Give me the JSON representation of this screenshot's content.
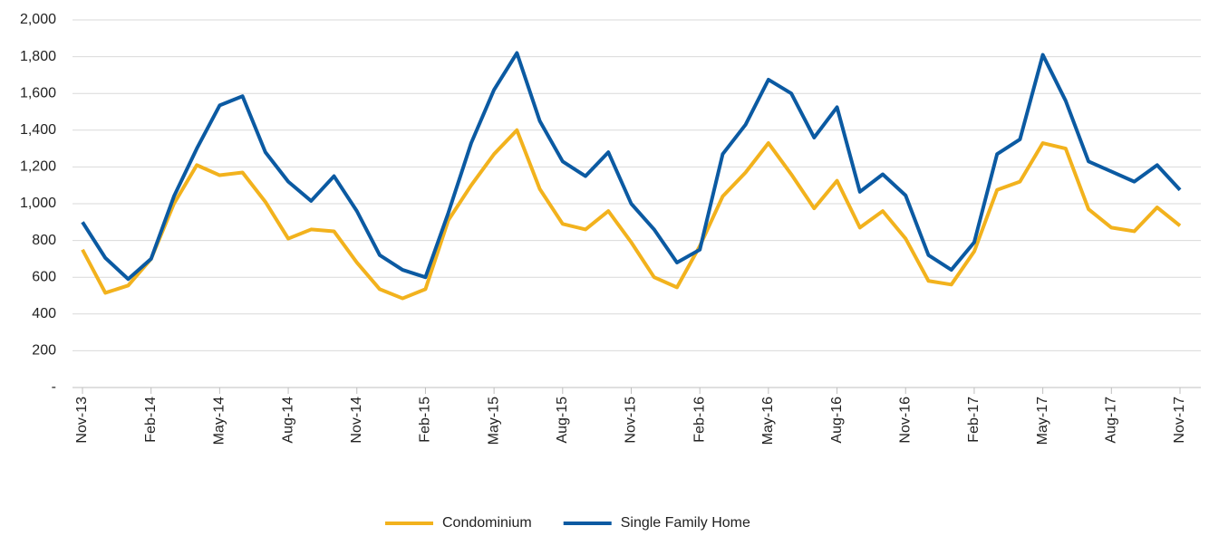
{
  "chart_data": {
    "type": "line",
    "categories": [
      "Nov-13",
      null,
      null,
      "Feb-14",
      null,
      null,
      "May-14",
      null,
      null,
      "Aug-14",
      null,
      null,
      "Nov-14",
      null,
      null,
      "Feb-15",
      null,
      null,
      "May-15",
      null,
      null,
      "Aug-15",
      null,
      null,
      "Nov-15",
      null,
      null,
      "Feb-16",
      null,
      null,
      "May-16",
      null,
      null,
      "Aug-16",
      null,
      null,
      "Nov-16",
      null,
      null,
      "Feb-17",
      null,
      null,
      "May-17",
      null,
      null,
      "Aug-17",
      null,
      null,
      "Nov-17"
    ],
    "series": [
      {
        "name": "Condominium",
        "color": "#f2b21d",
        "values": [
          750,
          515,
          555,
          700,
          1000,
          1210,
          1155,
          1170,
          1010,
          810,
          860,
          850,
          680,
          535,
          485,
          535,
          910,
          1100,
          1270,
          1400,
          1080,
          890,
          860,
          960,
          790,
          600,
          545,
          770,
          1040,
          1170,
          1330,
          1160,
          975,
          1125,
          870,
          960,
          810,
          580,
          560,
          740,
          1075,
          1120,
          1330,
          1300,
          970,
          870,
          850,
          980,
          880
        ]
      },
      {
        "name": "Single Family Home",
        "color": "#0b5aa2",
        "values": [
          900,
          705,
          590,
          700,
          1040,
          1300,
          1535,
          1585,
          1280,
          1120,
          1015,
          1150,
          960,
          720,
          640,
          600,
          950,
          1330,
          1620,
          1820,
          1450,
          1230,
          1150,
          1280,
          1000,
          860,
          680,
          750,
          1270,
          1430,
          1675,
          1600,
          1360,
          1525,
          1065,
          1160,
          1045,
          720,
          640,
          790,
          1270,
          1350,
          1810,
          1560,
          1230,
          1175,
          1120,
          1210,
          1075
        ]
      }
    ],
    "ylim": [
      0,
      2000
    ],
    "yticks": [
      {
        "value": 0,
        "label": "-"
      },
      200,
      400,
      600,
      800,
      {
        "value": 1000,
        "label": "1,000"
      },
      {
        "value": 1200,
        "label": "1,200"
      },
      {
        "value": 1400,
        "label": "1,400"
      },
      {
        "value": 1600,
        "label": "1,600"
      },
      {
        "value": 1800,
        "label": "1,800"
      },
      {
        "value": 2000,
        "label": "2,000"
      }
    ],
    "grid": true,
    "legend": "bottom"
  }
}
